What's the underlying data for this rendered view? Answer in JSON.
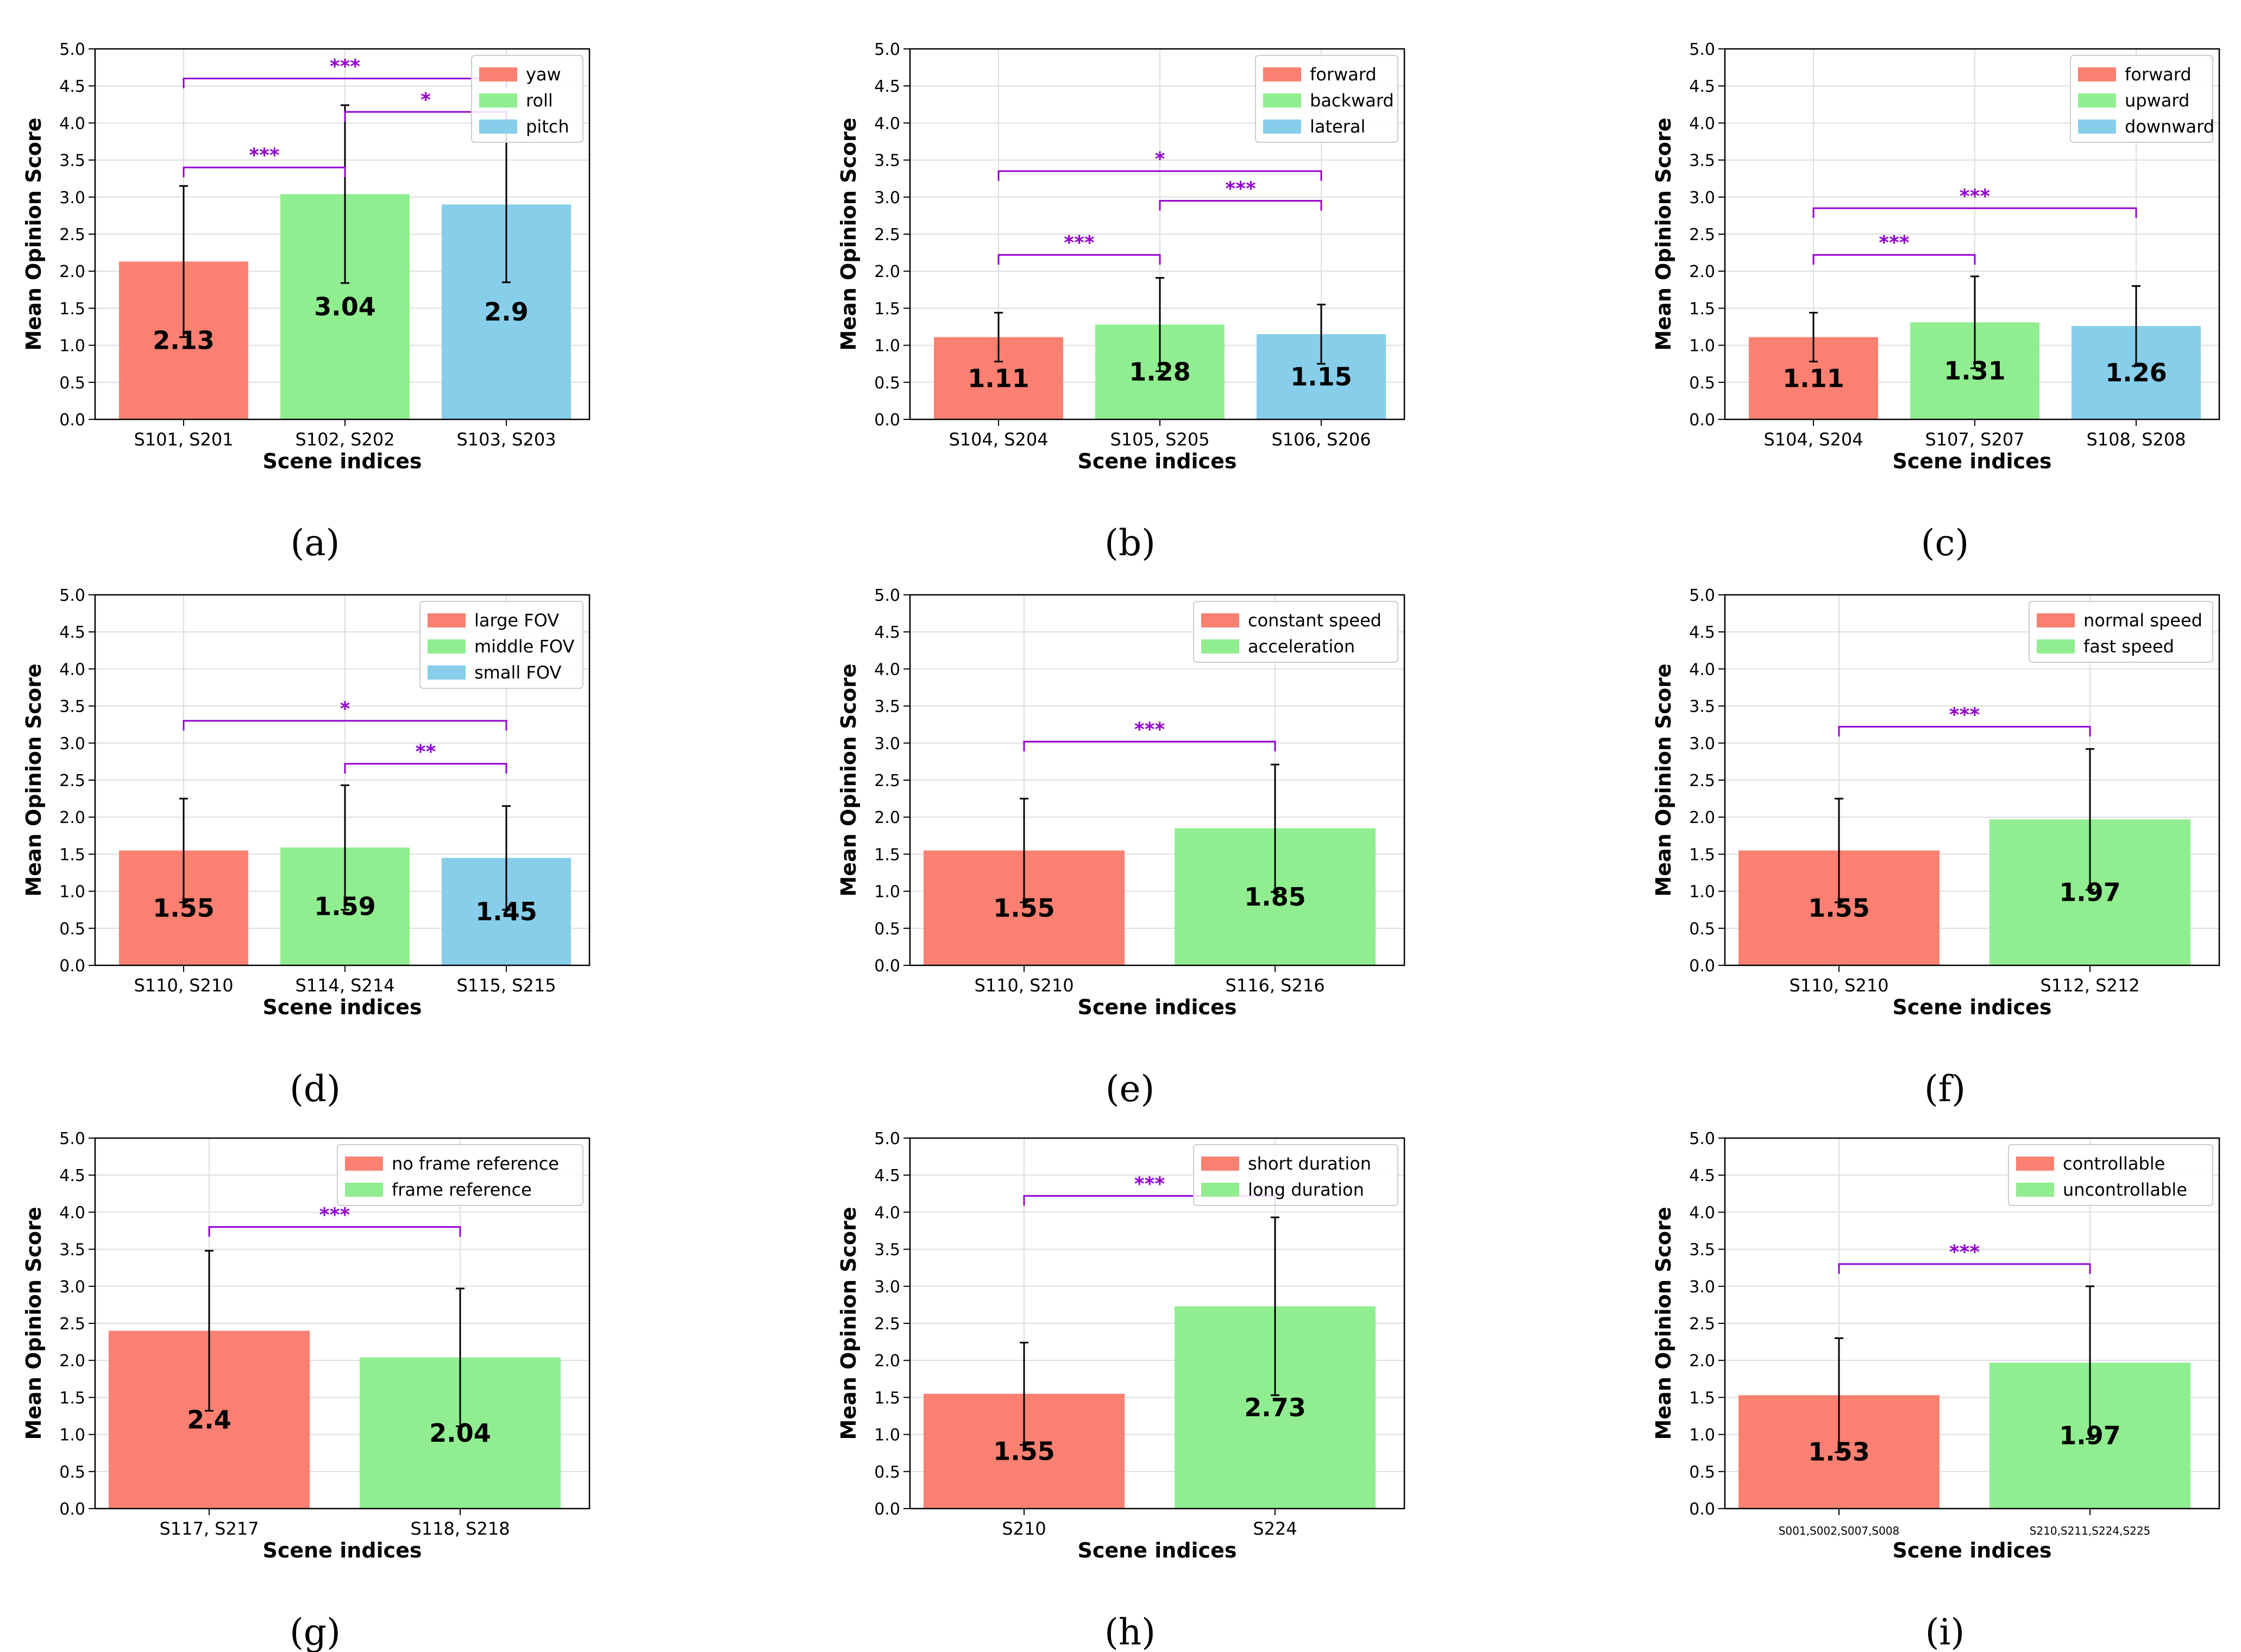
{
  "colors": {
    "red": "#fa8072",
    "green": "#90ee90",
    "blue": "#87ceeb",
    "bracket": "#9400d3",
    "grid": "#dddddd",
    "legend_border": "#cccccc"
  },
  "chart_data": [
    {
      "type": "bar",
      "panel": "(a)",
      "categories": [
        "S101, S201",
        "S102, S202",
        "S103, S203"
      ],
      "legend": [
        "yaw",
        "roll",
        "pitch"
      ],
      "values": [
        2.13,
        3.04,
        2.9
      ],
      "value_labels": [
        "2.13",
        "3.04",
        "2.9"
      ],
      "errors": [
        1.02,
        1.2,
        1.05
      ],
      "bar_colors": [
        "red",
        "green",
        "blue"
      ],
      "xlabel": "Scene indices",
      "ylabel": "Mean Opinion Score",
      "ylim": [
        0,
        5
      ],
      "yticks": [
        "0.0",
        "0.5",
        "1.0",
        "1.5",
        "2.0",
        "2.5",
        "3.0",
        "3.5",
        "4.0",
        "4.5",
        "5.0"
      ],
      "grid": true,
      "legend_position": "top-right",
      "significance": [
        {
          "from": 0,
          "to": 1,
          "y": 3.4,
          "label": "***"
        },
        {
          "from": 1,
          "to": 2,
          "y": 4.15,
          "label": "*"
        },
        {
          "from": 0,
          "to": 2,
          "y": 4.6,
          "label": "***"
        }
      ]
    },
    {
      "type": "bar",
      "panel": "(b)",
      "categories": [
        "S104, S204",
        "S105, S205",
        "S106, S206"
      ],
      "legend": [
        "forward",
        "backward",
        "lateral"
      ],
      "values": [
        1.11,
        1.28,
        1.15
      ],
      "value_labels": [
        "1.11",
        "1.28",
        "1.15"
      ],
      "errors": [
        0.33,
        0.63,
        0.4
      ],
      "bar_colors": [
        "red",
        "green",
        "blue"
      ],
      "xlabel": "Scene indices",
      "ylabel": "Mean Opinion Score",
      "ylim": [
        0,
        5
      ],
      "yticks": [
        "0.0",
        "0.5",
        "1.0",
        "1.5",
        "2.0",
        "2.5",
        "3.0",
        "3.5",
        "4.0",
        "4.5",
        "5.0"
      ],
      "grid": true,
      "legend_position": "top-right",
      "significance": [
        {
          "from": 0,
          "to": 1,
          "y": 2.22,
          "label": "***"
        },
        {
          "from": 1,
          "to": 2,
          "y": 2.95,
          "label": "***"
        },
        {
          "from": 0,
          "to": 2,
          "y": 3.35,
          "label": "*"
        }
      ]
    },
    {
      "type": "bar",
      "panel": "(c)",
      "categories": [
        "S104, S204",
        "S107, S207",
        "S108, S208"
      ],
      "legend": [
        "forward",
        "upward",
        "downward"
      ],
      "values": [
        1.11,
        1.31,
        1.26
      ],
      "value_labels": [
        "1.11",
        "1.31",
        "1.26"
      ],
      "errors": [
        0.33,
        0.62,
        0.54
      ],
      "bar_colors": [
        "red",
        "green",
        "blue"
      ],
      "xlabel": "Scene indices",
      "ylabel": "Mean Opinion Score",
      "ylim": [
        0,
        5
      ],
      "yticks": [
        "0.0",
        "0.5",
        "1.0",
        "1.5",
        "2.0",
        "2.5",
        "3.0",
        "3.5",
        "4.0",
        "4.5",
        "5.0"
      ],
      "grid": true,
      "legend_position": "top-right",
      "significance": [
        {
          "from": 0,
          "to": 1,
          "y": 2.22,
          "label": "***"
        },
        {
          "from": 0,
          "to": 2,
          "y": 2.85,
          "label": "***"
        }
      ]
    },
    {
      "type": "bar",
      "panel": "(d)",
      "categories": [
        "S110, S210",
        "S114, S214",
        "S115, S215"
      ],
      "legend": [
        "large FOV",
        "middle FOV",
        "small FOV"
      ],
      "values": [
        1.55,
        1.59,
        1.45
      ],
      "value_labels": [
        "1.55",
        "1.59",
        "1.45"
      ],
      "errors": [
        0.7,
        0.84,
        0.7
      ],
      "bar_colors": [
        "red",
        "green",
        "blue"
      ],
      "xlabel": "Scene indices",
      "ylabel": "Mean Opinion Score",
      "ylim": [
        0,
        5
      ],
      "yticks": [
        "0.0",
        "0.5",
        "1.0",
        "1.5",
        "2.0",
        "2.5",
        "3.0",
        "3.5",
        "4.0",
        "4.5",
        "5.0"
      ],
      "grid": true,
      "legend_position": "top-right",
      "significance": [
        {
          "from": 1,
          "to": 2,
          "y": 2.72,
          "label": "**"
        },
        {
          "from": 0,
          "to": 2,
          "y": 3.3,
          "label": "*"
        }
      ]
    },
    {
      "type": "bar",
      "panel": "(e)",
      "categories": [
        "S110, S210",
        "S116, S216"
      ],
      "legend": [
        "constant speed",
        "acceleration"
      ],
      "values": [
        1.55,
        1.85
      ],
      "value_labels": [
        "1.55",
        "1.85"
      ],
      "errors": [
        0.7,
        0.86
      ],
      "bar_colors": [
        "red",
        "green"
      ],
      "xlabel": "Scene indices",
      "ylabel": "Mean Opinion Score",
      "ylim": [
        0,
        5
      ],
      "yticks": [
        "0.0",
        "0.5",
        "1.0",
        "1.5",
        "2.0",
        "2.5",
        "3.0",
        "3.5",
        "4.0",
        "4.5",
        "5.0"
      ],
      "grid": true,
      "legend_position": "top-right",
      "significance": [
        {
          "from": 0,
          "to": 1,
          "y": 3.02,
          "label": "***"
        }
      ]
    },
    {
      "type": "bar",
      "panel": "(f)",
      "categories": [
        "S110, S210",
        "S112, S212"
      ],
      "legend": [
        "normal speed",
        "fast speed"
      ],
      "values": [
        1.55,
        1.97
      ],
      "value_labels": [
        "1.55",
        "1.97"
      ],
      "errors": [
        0.7,
        0.95
      ],
      "bar_colors": [
        "red",
        "green"
      ],
      "xlabel": "Scene indices",
      "ylabel": "Mean Opinion Score",
      "ylim": [
        0,
        5
      ],
      "yticks": [
        "0.0",
        "0.5",
        "1.0",
        "1.5",
        "2.0",
        "2.5",
        "3.0",
        "3.5",
        "4.0",
        "4.5",
        "5.0"
      ],
      "grid": true,
      "legend_position": "top-right",
      "significance": [
        {
          "from": 0,
          "to": 1,
          "y": 3.22,
          "label": "***"
        }
      ]
    },
    {
      "type": "bar",
      "panel": "(g)",
      "categories": [
        "S117, S217",
        "S118, S218"
      ],
      "legend": [
        "no frame reference",
        "frame reference"
      ],
      "values": [
        2.4,
        2.04
      ],
      "value_labels": [
        "2.4",
        "2.04"
      ],
      "errors": [
        1.08,
        0.93
      ],
      "bar_colors": [
        "red",
        "green"
      ],
      "xlabel": "Scene indices",
      "ylabel": "Mean Opinion Score",
      "ylim": [
        0,
        5
      ],
      "yticks": [
        "0.0",
        "0.5",
        "1.0",
        "1.5",
        "2.0",
        "2.5",
        "3.0",
        "3.5",
        "4.0",
        "4.5",
        "5.0"
      ],
      "grid": true,
      "legend_position": "top-right",
      "significance": [
        {
          "from": 0,
          "to": 1,
          "y": 3.8,
          "label": "***"
        }
      ]
    },
    {
      "type": "bar",
      "panel": "(h)",
      "categories": [
        "S210",
        "S224"
      ],
      "legend": [
        "short duration",
        "long duration"
      ],
      "values": [
        1.55,
        2.73
      ],
      "value_labels": [
        "1.55",
        "2.73"
      ],
      "errors": [
        0.69,
        1.2
      ],
      "bar_colors": [
        "red",
        "green"
      ],
      "xlabel": "Scene indices",
      "ylabel": "Mean Opinion Score",
      "ylim": [
        0,
        5
      ],
      "yticks": [
        "0.0",
        "0.5",
        "1.0",
        "1.5",
        "2.0",
        "2.5",
        "3.0",
        "3.5",
        "4.0",
        "4.5",
        "5.0"
      ],
      "grid": true,
      "legend_position": "top-right",
      "significance": [
        {
          "from": 0,
          "to": 1,
          "y": 4.22,
          "label": "***"
        }
      ]
    },
    {
      "type": "bar",
      "panel": "(i)",
      "categories": [
        "S001,S002,S007,S008",
        "S210,S211,S224,S225"
      ],
      "legend": [
        "controllable",
        "uncontrollable"
      ],
      "values": [
        1.53,
        1.97
      ],
      "value_labels": [
        "1.53",
        "1.97"
      ],
      "errors": [
        0.77,
        1.03
      ],
      "bar_colors": [
        "red",
        "green"
      ],
      "xlabel": "Scene indices",
      "ylabel": "Mean Opinion Score",
      "ylim": [
        0,
        5
      ],
      "yticks": [
        "0.0",
        "0.5",
        "1.0",
        "1.5",
        "2.0",
        "2.5",
        "3.0",
        "3.5",
        "4.0",
        "4.5",
        "5.0"
      ],
      "grid": true,
      "legend_position": "top-right",
      "small_tick_labels": true,
      "significance": [
        {
          "from": 0,
          "to": 1,
          "y": 3.3,
          "label": "***"
        }
      ]
    }
  ]
}
